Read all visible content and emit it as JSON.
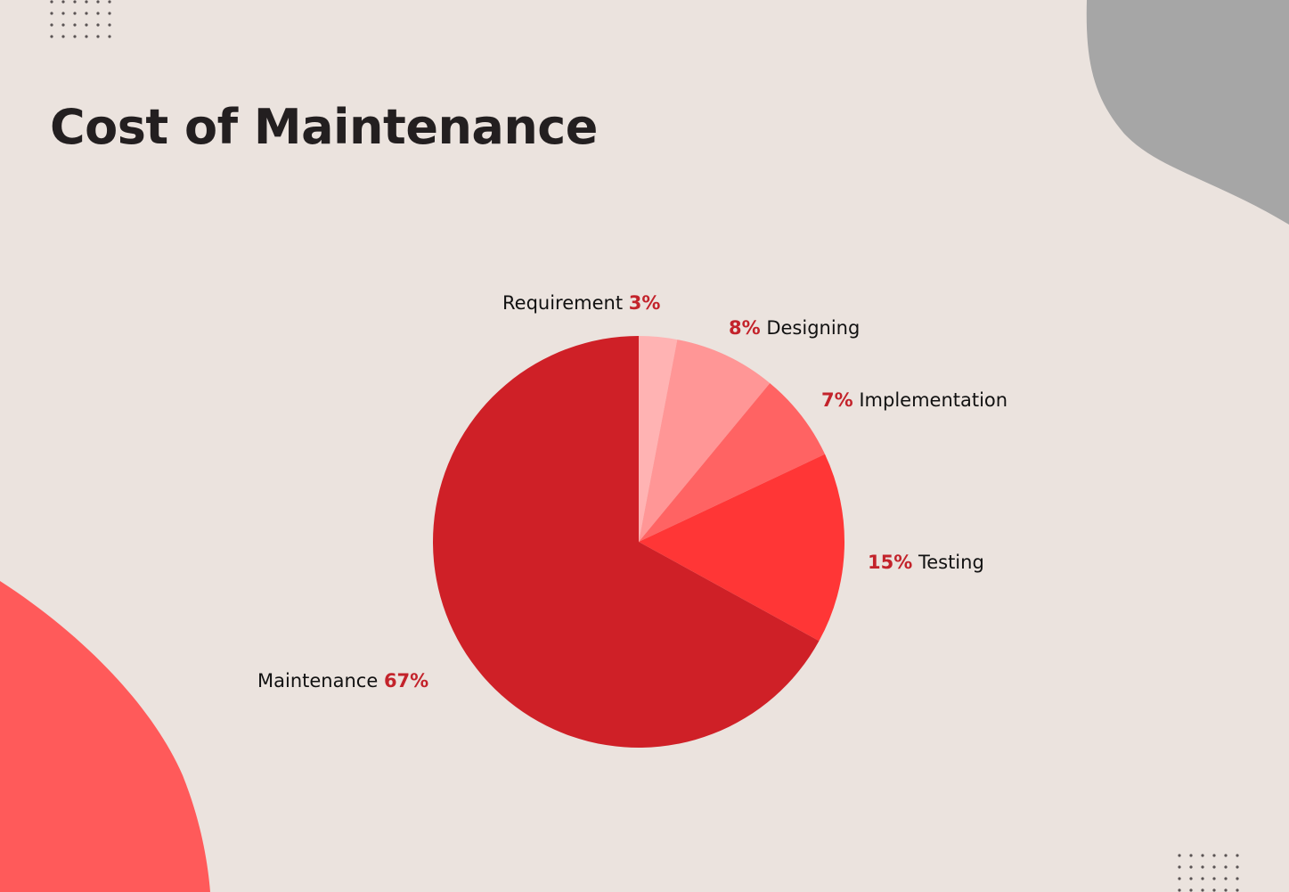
{
  "page": {
    "title": "Cost of Maintenance"
  },
  "colors": {
    "background": "#ebe3de",
    "title": "#231f20",
    "percent_text": "#c3232b",
    "blob_gray": "#a6a6a6",
    "blob_red": "#ff5a5a",
    "dots": "#5a5454"
  },
  "chart_data": {
    "type": "pie",
    "title": "Cost of Maintenance",
    "start_angle": "12 o'clock, clockwise",
    "categories": [
      "Requirement",
      "Designing",
      "Implementation",
      "Testing",
      "Maintenance"
    ],
    "values": [
      3,
      8,
      7,
      15,
      67
    ],
    "unit": "%",
    "slice_colors": [
      "#ffb3b3",
      "#ff9696",
      "#ff6363",
      "#ff3636",
      "#cf2027"
    ],
    "labels": [
      {
        "name": "Requirement",
        "percent": "3%"
      },
      {
        "name": "Designing",
        "percent": "8%"
      },
      {
        "name": "Implementation",
        "percent": "7%"
      },
      {
        "name": "Testing",
        "percent": "15%"
      },
      {
        "name": "Maintenance",
        "percent": "67%"
      }
    ],
    "legend": "none (direct labels)"
  }
}
